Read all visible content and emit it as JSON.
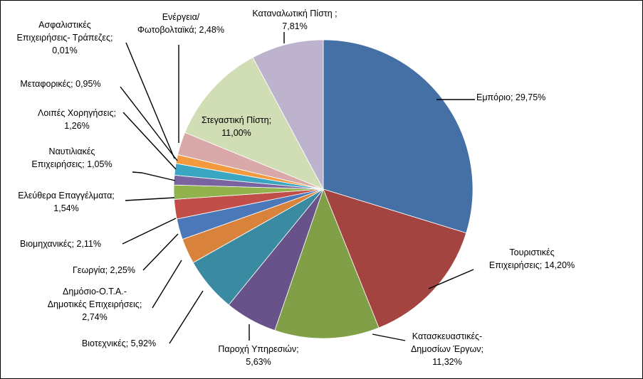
{
  "chart_data": {
    "type": "pie",
    "title": "",
    "start": "12 o'clock, clockwise",
    "slices": [
      {
        "label": [
          "Εμπόριο; 29,75%"
        ],
        "value": 29.75,
        "color": "#4470A6"
      },
      {
        "label": [
          "Τουριστικές",
          "Επιχειρήσεις; 14,20%"
        ],
        "value": 14.2,
        "color": "#A34441"
      },
      {
        "label": [
          "Κατασκευαστικές-",
          "Δημοσίων Έργων;",
          "11,32%"
        ],
        "value": 11.32,
        "color": "#809F47"
      },
      {
        "label": [
          "Παροχή Υπηρεσιών;",
          "5,63%"
        ],
        "value": 5.63,
        "color": "#675289"
      },
      {
        "label": [
          "Βιοτεχνικές; 5,92%"
        ],
        "value": 5.92,
        "color": "#3A8BA1"
      },
      {
        "label": [
          "Δημόσιο-Ο.Τ.Α.-",
          "Δημοτικές Επιχειρήσεις;",
          "2,74%"
        ],
        "value": 2.74,
        "color": "#D9823B"
      },
      {
        "label": [
          "Γεωργία; 2,25%"
        ],
        "value": 2.25,
        "color": "#4A78B8"
      },
      {
        "label": [
          "Βιομηχανικές; 2,11%"
        ],
        "value": 2.11,
        "color": "#C24E4A"
      },
      {
        "label": [
          "Ελεύθερα Επαγγέλματα;",
          "1,54%"
        ],
        "value": 1.54,
        "color": "#92B24E"
      },
      {
        "label": [
          "Ναυτιλιακές",
          "Επιχειρήσεις; 1,05%"
        ],
        "value": 1.05,
        "color": "#7A64A0"
      },
      {
        "label": [
          "Λοιπές Χορηγήσεις;",
          "1,26%"
        ],
        "value": 1.26,
        "color": "#3AA6C2"
      },
      {
        "label": [
          "Μεταφορικές; 0,95%"
        ],
        "value": 0.95,
        "color": "#F49A3E"
      },
      {
        "label": [
          "Ασφαλιστικές",
          "Επιχειρήσεις- Τράπεζες;",
          "0,01%"
        ],
        "value": 0.01,
        "color": "#9EB6D8"
      },
      {
        "label": [
          "Ενέργεια/",
          "Φωτοβολταϊκά; 2,48%"
        ],
        "value": 2.48,
        "color": "#D8A9A8"
      },
      {
        "label": [
          "Στεγαστική Πίστη;",
          "11,00%"
        ],
        "value": 11.0,
        "color": "#D1DEB5"
      },
      {
        "label": [
          "Καταναλωτική Πίστη ;",
          "7,81%"
        ],
        "value": 7.81,
        "color": "#BDB3CD"
      }
    ]
  }
}
